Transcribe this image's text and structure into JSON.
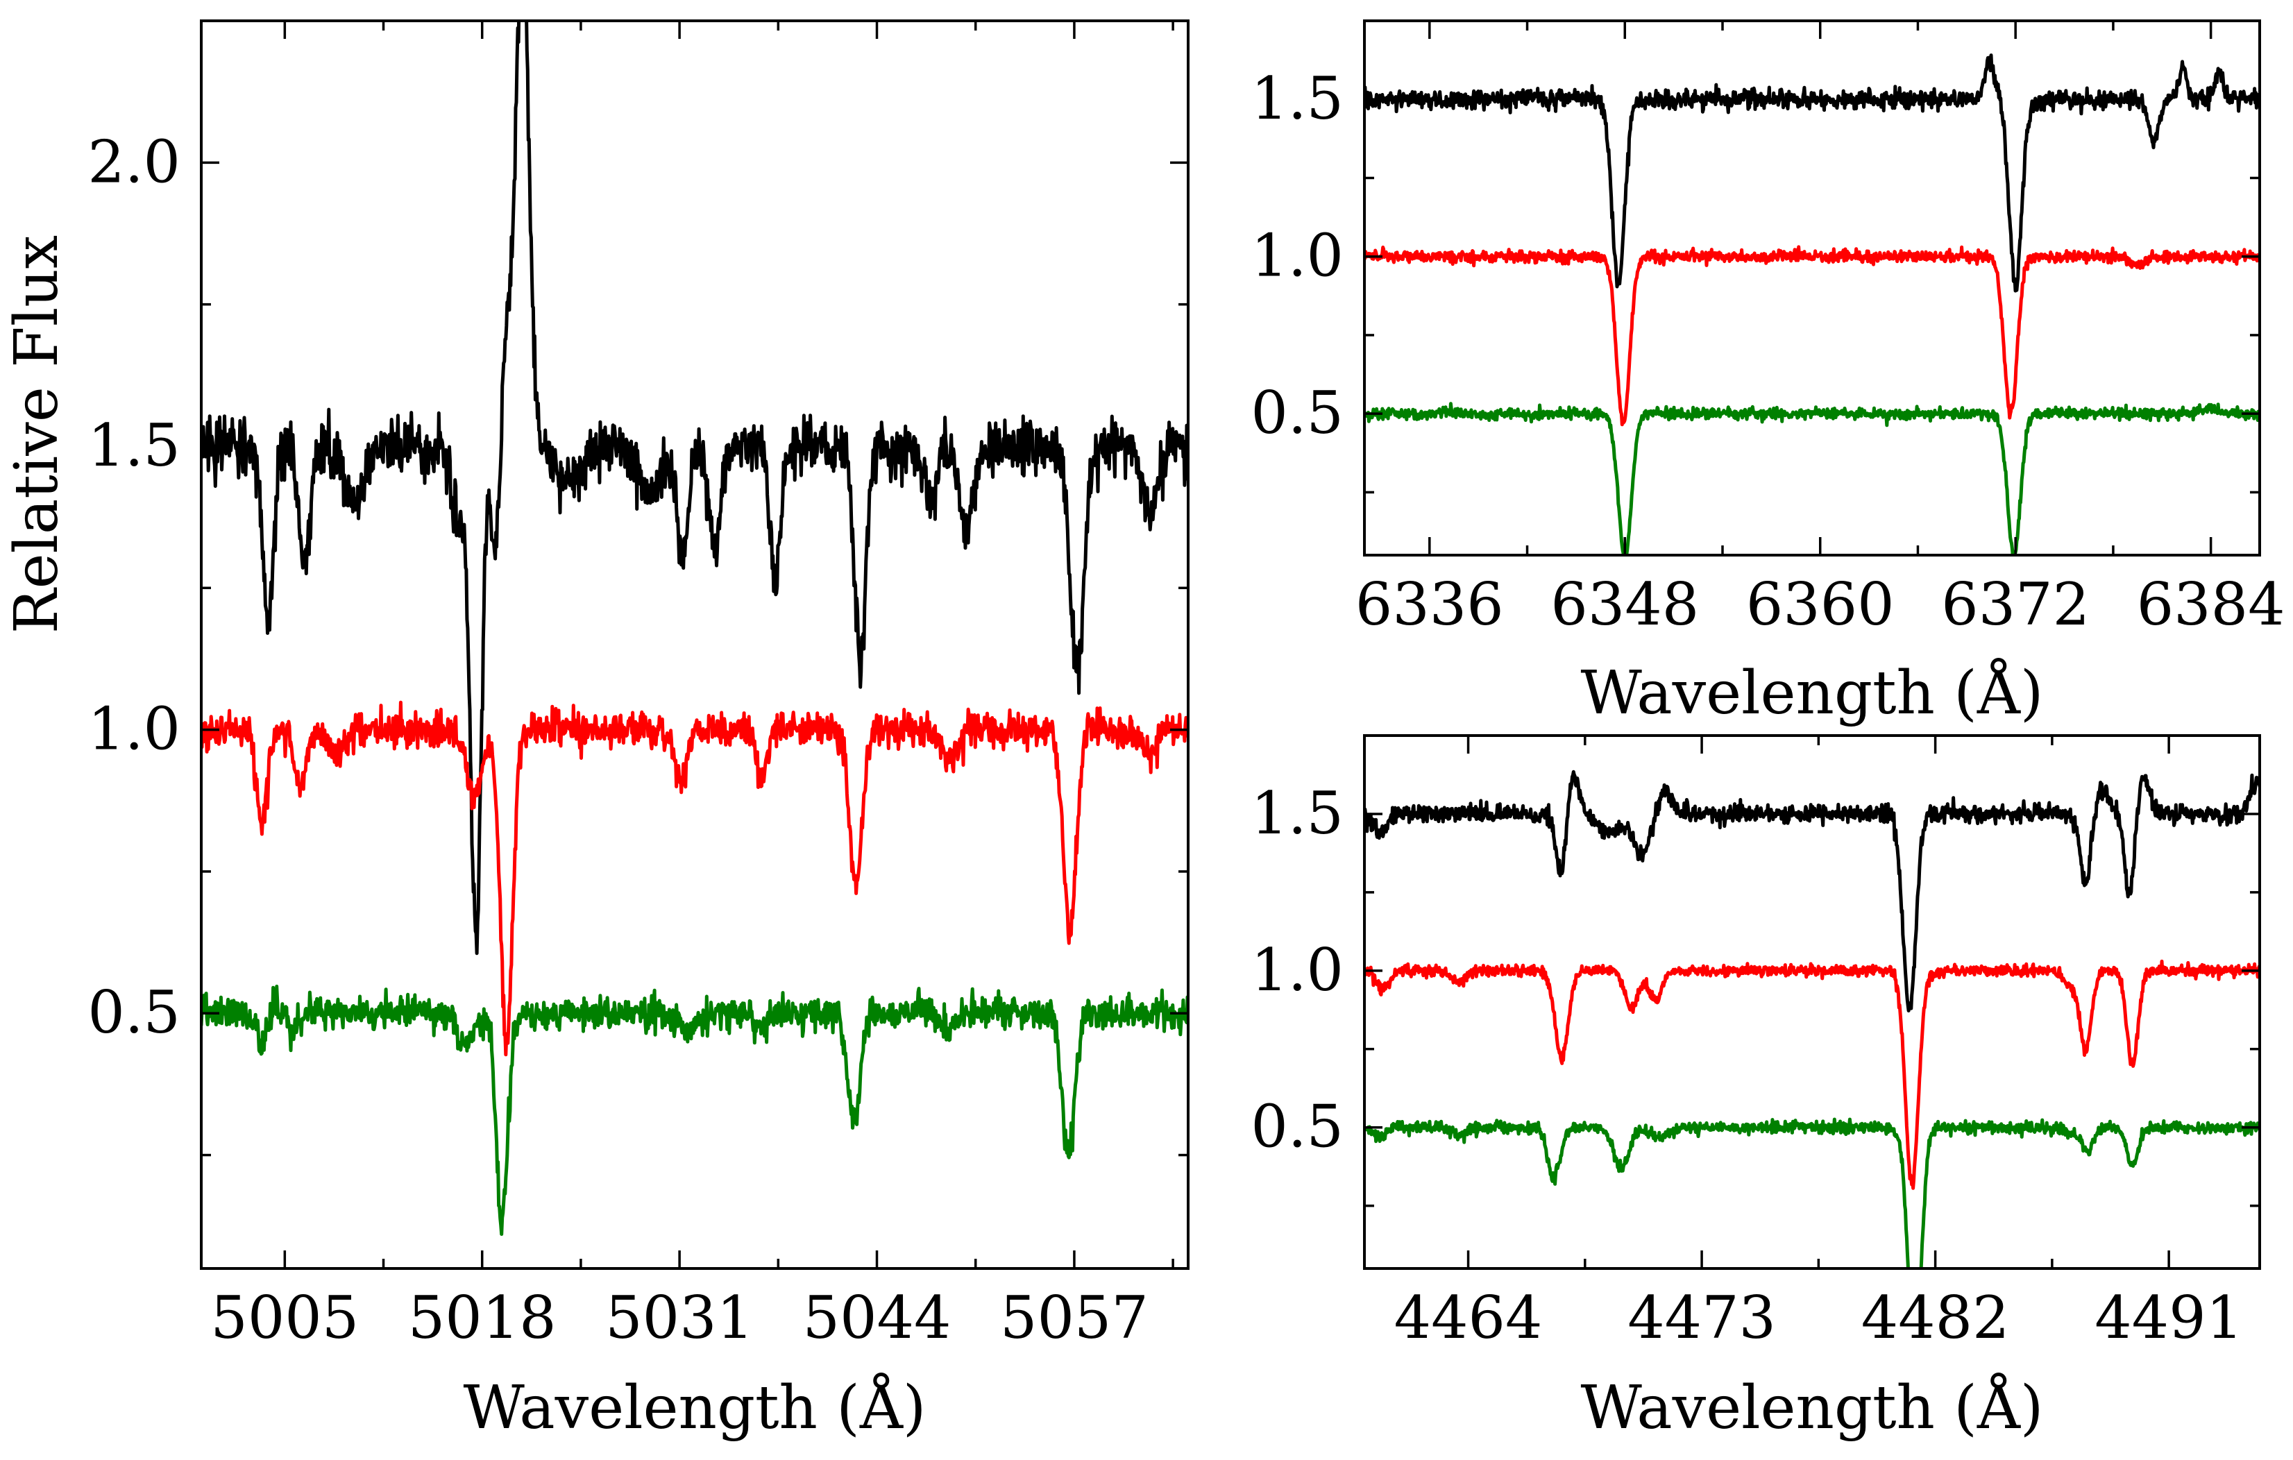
{
  "figure": {
    "ylabel": "Relative Flux"
  },
  "chart_data": [
    {
      "type": "line",
      "panel": "left",
      "xlabel": "Wavelength (Å)",
      "ylabel": "Relative Flux",
      "xlim": [
        4999.5,
        5064.5
      ],
      "ylim": [
        0.05,
        2.25
      ],
      "xticks": [
        5005,
        5018,
        5031,
        5044,
        5057
      ],
      "yticks": [
        0.5,
        1.0,
        1.5,
        2.0
      ],
      "ytick_labels": [
        "0.5",
        "1.0",
        "1.5",
        "2.0"
      ],
      "noise": 0.015,
      "series": [
        {
          "name": "black spectrum",
          "color": "#000000",
          "continuum": 1.5,
          "features": [
            [
              5003.9,
              -0.31,
              0.35
            ],
            [
              5006.3,
              -0.22,
              0.35
            ],
            [
              5009.5,
              -0.1,
              0.6
            ],
            [
              5016.5,
              -0.12,
              0.5
            ],
            [
              5017.6,
              -0.85,
              0.35
            ],
            [
              5018.9,
              -0.25,
              0.3
            ],
            [
              5020.7,
              0.7,
              0.35
            ],
            [
              5020.2,
              0.3,
              0.8
            ],
            [
              5023.5,
              -0.05,
              1.2
            ],
            [
              5029.0,
              -0.08,
              0.8
            ],
            [
              5031.2,
              -0.2,
              0.35
            ],
            [
              5033.3,
              -0.17,
              0.4
            ],
            [
              5037.3,
              -0.23,
              0.35
            ],
            [
              5042.9,
              -0.38,
              0.38
            ],
            [
              5047.5,
              -0.1,
              0.4
            ],
            [
              5049.9,
              -0.15,
              0.45
            ],
            [
              5057.2,
              -0.4,
              0.45
            ],
            [
              5062.0,
              -0.12,
              0.5
            ]
          ]
        },
        {
          "name": "red spectrum",
          "color": "#ff0000",
          "continuum": 1.0,
          "features": [
            [
              5003.5,
              -0.17,
              0.35
            ],
            [
              5006.0,
              -0.1,
              0.35
            ],
            [
              5008.5,
              -0.04,
              0.5
            ],
            [
              5017.5,
              -0.12,
              0.5
            ],
            [
              5019.6,
              -0.56,
              0.4
            ],
            [
              5031.1,
              -0.09,
              0.35
            ],
            [
              5036.4,
              -0.08,
              0.35
            ],
            [
              5042.6,
              -0.27,
              0.42
            ],
            [
              5048.8,
              -0.05,
              0.5
            ],
            [
              5056.7,
              -0.35,
              0.42
            ],
            [
              5062.0,
              -0.05,
              0.5
            ]
          ]
        },
        {
          "name": "green spectrum",
          "color": "#008000",
          "continuum": 0.5,
          "features": [
            [
              5003.5,
              -0.05,
              0.35
            ],
            [
              5005.5,
              -0.03,
              0.35
            ],
            [
              5016.9,
              -0.06,
              0.5
            ],
            [
              5019.3,
              -0.37,
              0.38
            ],
            [
              5031.5,
              -0.04,
              0.4
            ],
            [
              5036.4,
              -0.03,
              0.4
            ],
            [
              5042.5,
              -0.19,
              0.42
            ],
            [
              5048.8,
              -0.03,
              0.5
            ],
            [
              5056.6,
              -0.25,
              0.42
            ]
          ]
        }
      ]
    },
    {
      "type": "line",
      "panel": "top-right",
      "xlabel": "Wavelength (Å)",
      "xlim": [
        6332.0,
        6387.0
      ],
      "ylim": [
        0.05,
        1.75
      ],
      "xticks": [
        6336,
        6348,
        6360,
        6372,
        6384
      ],
      "yticks": [
        0.5,
        1.0,
        1.5
      ],
      "ytick_labels": [
        "0.5",
        "1.0",
        "1.5"
      ],
      "noise": 0.009,
      "series": [
        {
          "name": "black spectrum",
          "color": "#000000",
          "continuum": 1.5,
          "features": [
            [
              6347.6,
              -0.59,
              0.38
            ],
            [
              6370.4,
              0.12,
              0.3
            ],
            [
              6372.0,
              -0.6,
              0.38
            ],
            [
              6380.5,
              -0.14,
              0.3
            ],
            [
              6382.3,
              0.1,
              0.25
            ],
            [
              6384.5,
              0.08,
              0.25
            ]
          ]
        },
        {
          "name": "red spectrum",
          "color": "#ff0000",
          "continuum": 1.0,
          "features": [
            [
              6347.9,
              -0.53,
              0.4
            ],
            [
              6371.7,
              -0.5,
              0.4
            ],
            [
              6379.5,
              -0.03,
              0.4
            ]
          ]
        },
        {
          "name": "green spectrum",
          "color": "#008000",
          "continuum": 0.5,
          "features": [
            [
              6348.0,
              -0.46,
              0.4
            ],
            [
              6371.9,
              -0.45,
              0.4
            ],
            [
              6384.0,
              0.02,
              0.5
            ]
          ]
        }
      ]
    },
    {
      "type": "line",
      "panel": "bottom-right",
      "xlabel": "Wavelength (Å)",
      "xlim": [
        4460.0,
        4494.5
      ],
      "ylim": [
        0.05,
        1.75
      ],
      "xticks": [
        4464,
        4473,
        4482,
        4491
      ],
      "yticks": [
        0.5,
        1.0,
        1.5
      ],
      "ytick_labels": [
        "0.5",
        "1.0",
        "1.5"
      ],
      "noise": 0.009,
      "series": [
        {
          "name": "black spectrum",
          "color": "#000000",
          "continuum": 1.5,
          "features": [
            [
              4460.6,
              -0.06,
              0.25
            ],
            [
              4467.6,
              -0.22,
              0.2
            ],
            [
              4468.0,
              0.14,
              0.25
            ],
            [
              4469.5,
              -0.06,
              0.5
            ],
            [
              4470.7,
              -0.12,
              0.3
            ],
            [
              4471.6,
              0.08,
              0.25
            ],
            [
              4481.0,
              -0.62,
              0.25
            ],
            [
              4487.8,
              -0.23,
              0.2
            ],
            [
              4488.4,
              0.08,
              0.3
            ],
            [
              4489.5,
              -0.27,
              0.2
            ],
            [
              4490.0,
              0.12,
              0.25
            ],
            [
              4494.4,
              0.1,
              0.25
            ]
          ]
        },
        {
          "name": "red spectrum",
          "color": "#ff0000",
          "continuum": 1.0,
          "features": [
            [
              4460.7,
              -0.06,
              0.25
            ],
            [
              4463.6,
              -0.04,
              0.25
            ],
            [
              4467.6,
              -0.28,
              0.25
            ],
            [
              4470.3,
              -0.12,
              0.25
            ],
            [
              4471.2,
              -0.1,
              0.25
            ],
            [
              4481.1,
              -0.68,
              0.25
            ],
            [
              4487.2,
              -0.05,
              0.25
            ],
            [
              4487.8,
              -0.25,
              0.22
            ],
            [
              4489.6,
              -0.3,
              0.22
            ]
          ]
        },
        {
          "name": "green spectrum",
          "color": "#008000",
          "continuum": 0.5,
          "features": [
            [
              4460.6,
              -0.03,
              0.25
            ],
            [
              4463.6,
              -0.03,
              0.25
            ],
            [
              4467.3,
              -0.16,
              0.25
            ],
            [
              4469.9,
              -0.13,
              0.3
            ],
            [
              4471.4,
              -0.03,
              0.3
            ],
            [
              4481.2,
              -0.74,
              0.25
            ],
            [
              4487.3,
              -0.02,
              0.25
            ],
            [
              4487.9,
              -0.07,
              0.22
            ],
            [
              4489.6,
              -0.12,
              0.22
            ]
          ]
        }
      ]
    }
  ]
}
